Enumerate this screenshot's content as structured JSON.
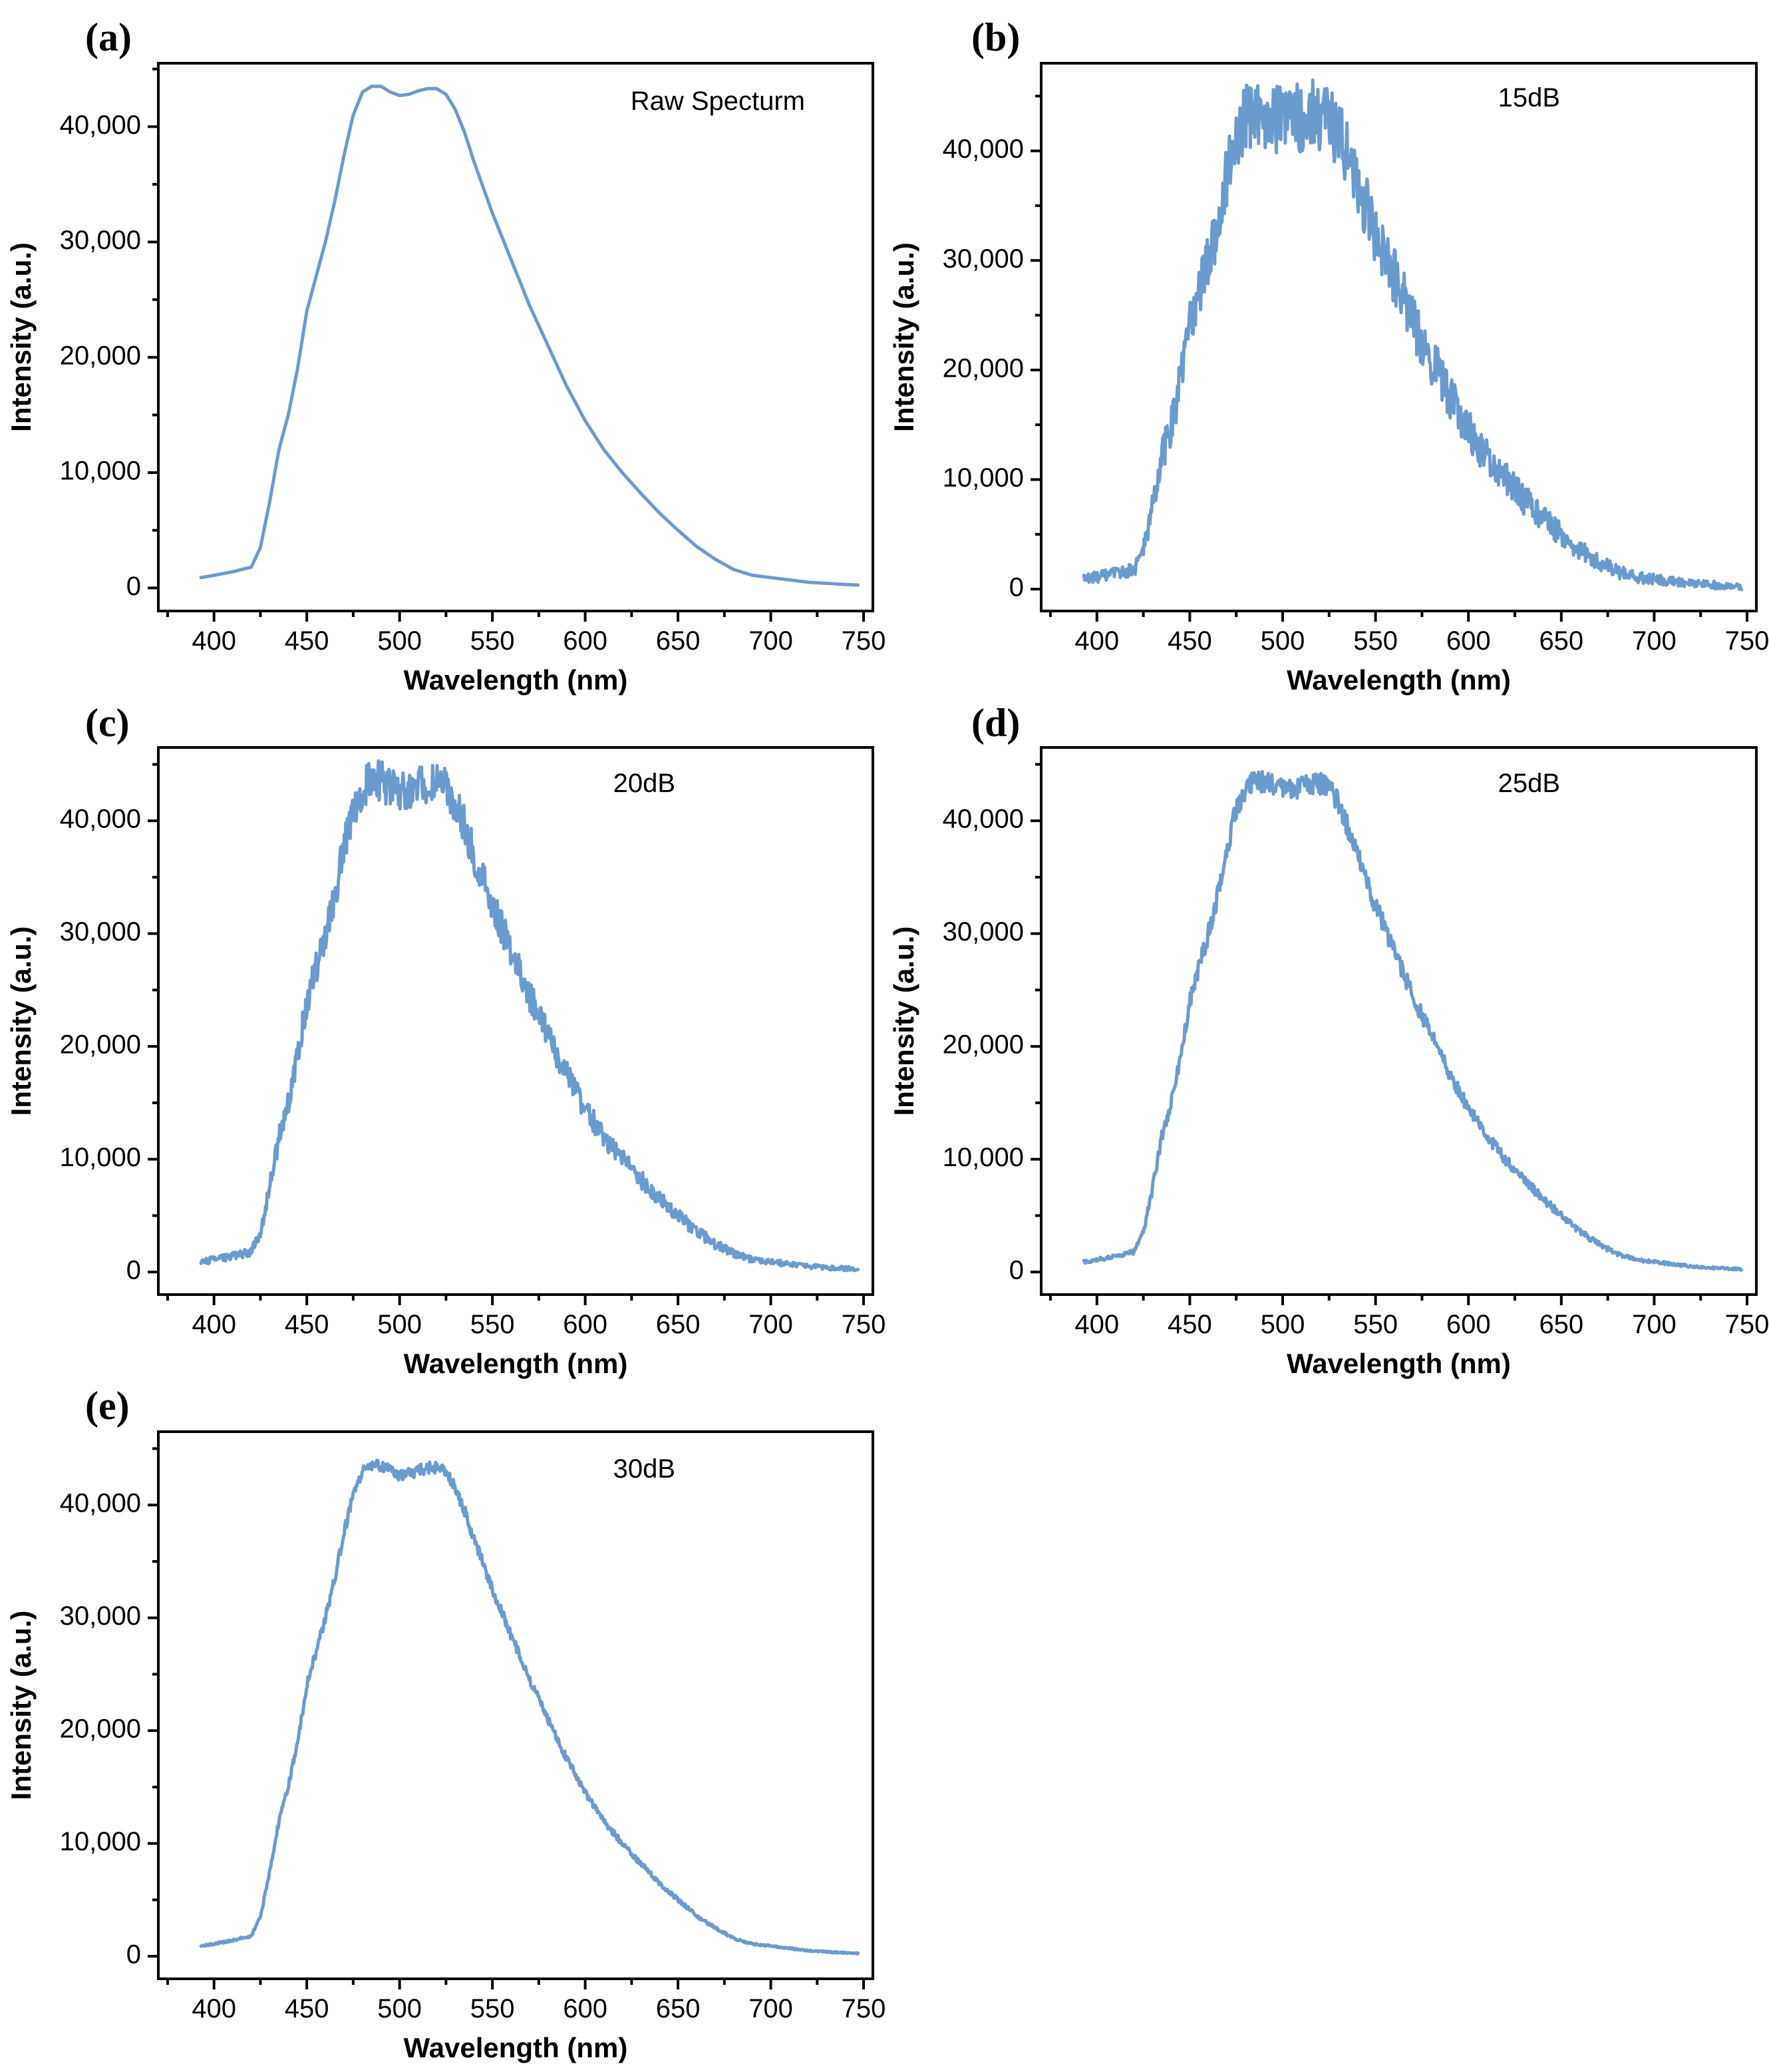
{
  "chart_data": [
    {
      "type": "line",
      "panel_label": "(a)",
      "annotation": "Raw Specturm",
      "xlabel": "Wavelength (nm)",
      "ylabel": "Intensity (a.u.)",
      "xlim": [
        370,
        755
      ],
      "ylim": [
        -2000,
        45500
      ],
      "xticks": [
        400,
        450,
        500,
        550,
        600,
        650,
        700,
        750
      ],
      "xtick_labels": [
        "400",
        "450",
        "500",
        "550",
        "600",
        "650",
        "700",
        "750"
      ],
      "yticks": [
        0,
        10000,
        20000,
        30000,
        40000
      ],
      "ytick_labels": [
        "0",
        "10,000",
        "20,000",
        "30,000",
        "40,000"
      ],
      "color": "#6a9bcf",
      "noise": 0,
      "series": [
        {
          "name": "Raw Specturm",
          "x": [
            393,
            400,
            410,
            420,
            425,
            430,
            435,
            440,
            445,
            450,
            455,
            460,
            465,
            470,
            475,
            480,
            485,
            490,
            495,
            500,
            505,
            510,
            515,
            520,
            525,
            530,
            535,
            540,
            550,
            560,
            570,
            580,
            590,
            600,
            610,
            620,
            630,
            640,
            650,
            660,
            670,
            680,
            690,
            700,
            710,
            720,
            730,
            740,
            747
          ],
          "y": [
            900,
            1100,
            1400,
            1800,
            3500,
            7500,
            12000,
            15000,
            19000,
            24000,
            27000,
            30000,
            33500,
            37500,
            41000,
            43000,
            43500,
            43500,
            43000,
            42700,
            42800,
            43100,
            43300,
            43300,
            42800,
            41500,
            39500,
            37000,
            32500,
            28500,
            24500,
            21000,
            17500,
            14500,
            12000,
            10000,
            8200,
            6500,
            5000,
            3600,
            2500,
            1600,
            1100,
            900,
            700,
            500,
            400,
            300,
            250
          ]
        }
      ]
    },
    {
      "type": "line",
      "panel_label": "(b)",
      "annotation": "15dB",
      "xlabel": "Wavelength (nm)",
      "ylabel": "Intensity (a.u.)",
      "xlim": [
        370,
        755
      ],
      "ylim": [
        -2000,
        48000
      ],
      "xticks": [
        400,
        450,
        500,
        550,
        600,
        650,
        700,
        750
      ],
      "xtick_labels": [
        "400",
        "450",
        "500",
        "550",
        "600",
        "650",
        "700",
        "750"
      ],
      "yticks": [
        0,
        10000,
        20000,
        30000,
        40000
      ],
      "ytick_labels": [
        "0",
        "10,000",
        "20,000",
        "30,000",
        "40,000"
      ],
      "color": "#6a9bcf",
      "noise": 3200,
      "series": [
        {
          "name": "15dB",
          "x": [
            393,
            400,
            410,
            420,
            425,
            430,
            435,
            440,
            445,
            450,
            455,
            460,
            465,
            470,
            475,
            480,
            485,
            490,
            495,
            500,
            505,
            510,
            515,
            520,
            525,
            530,
            535,
            540,
            550,
            560,
            570,
            580,
            590,
            600,
            610,
            620,
            630,
            640,
            650,
            660,
            670,
            680,
            690,
            700,
            710,
            720,
            730,
            740,
            747
          ],
          "y": [
            900,
            1100,
            1400,
            1800,
            3500,
            7500,
            12000,
            15000,
            19000,
            24000,
            27000,
            30000,
            33500,
            37500,
            41000,
            43000,
            43500,
            43500,
            43000,
            42700,
            42800,
            43100,
            43300,
            43300,
            42800,
            41500,
            39500,
            37000,
            32500,
            28500,
            24500,
            21000,
            17500,
            14500,
            12000,
            10000,
            8200,
            6500,
            5000,
            3600,
            2500,
            1600,
            1100,
            900,
            700,
            500,
            400,
            300,
            250
          ]
        }
      ]
    },
    {
      "type": "line",
      "panel_label": "(c)",
      "annotation": "20dB",
      "xlabel": "Wavelength (nm)",
      "ylabel": "Intensity (a.u.)",
      "xlim": [
        370,
        755
      ],
      "ylim": [
        -2000,
        46500
      ],
      "xticks": [
        400,
        450,
        500,
        550,
        600,
        650,
        700,
        750
      ],
      "xtick_labels": [
        "400",
        "450",
        "500",
        "550",
        "600",
        "650",
        "700",
        "750"
      ],
      "yticks": [
        0,
        10000,
        20000,
        30000,
        40000
      ],
      "ytick_labels": [
        "0",
        "10,000",
        "20,000",
        "30,000",
        "40,000"
      ],
      "color": "#6a9bcf",
      "noise": 1800,
      "series": [
        {
          "name": "20dB",
          "x": [
            393,
            400,
            410,
            420,
            425,
            430,
            435,
            440,
            445,
            450,
            455,
            460,
            465,
            470,
            475,
            480,
            485,
            490,
            495,
            500,
            505,
            510,
            515,
            520,
            525,
            530,
            535,
            540,
            550,
            560,
            570,
            580,
            590,
            600,
            610,
            620,
            630,
            640,
            650,
            660,
            670,
            680,
            690,
            700,
            710,
            720,
            730,
            740,
            747
          ],
          "y": [
            900,
            1100,
            1400,
            1800,
            3500,
            7500,
            12000,
            15000,
            19000,
            24000,
            27000,
            30000,
            33500,
            37500,
            41000,
            43000,
            43500,
            43500,
            43000,
            42700,
            42800,
            43100,
            43300,
            43300,
            42800,
            41500,
            39500,
            37000,
            32500,
            28500,
            24500,
            21000,
            17500,
            14500,
            12000,
            10000,
            8200,
            6500,
            5000,
            3600,
            2500,
            1600,
            1100,
            900,
            700,
            500,
            400,
            300,
            250
          ]
        }
      ]
    },
    {
      "type": "line",
      "panel_label": "(d)",
      "annotation": "25dB",
      "xlabel": "Wavelength (nm)",
      "ylabel": "Intensity (a.u.)",
      "xlim": [
        370,
        755
      ],
      "ylim": [
        -2000,
        46500
      ],
      "xticks": [
        400,
        450,
        500,
        550,
        600,
        650,
        700,
        750
      ],
      "xtick_labels": [
        "400",
        "450",
        "500",
        "550",
        "600",
        "650",
        "700",
        "750"
      ],
      "yticks": [
        0,
        10000,
        20000,
        30000,
        40000
      ],
      "ytick_labels": [
        "0",
        "10,000",
        "20,000",
        "30,000",
        "40,000"
      ],
      "color": "#6a9bcf",
      "noise": 1000,
      "series": [
        {
          "name": "25dB",
          "x": [
            393,
            400,
            410,
            420,
            425,
            430,
            435,
            440,
            445,
            450,
            455,
            460,
            465,
            470,
            475,
            480,
            485,
            490,
            495,
            500,
            505,
            510,
            515,
            520,
            525,
            530,
            535,
            540,
            550,
            560,
            570,
            580,
            590,
            600,
            610,
            620,
            630,
            640,
            650,
            660,
            670,
            680,
            690,
            700,
            710,
            720,
            730,
            740,
            747
          ],
          "y": [
            900,
            1100,
            1400,
            1800,
            3500,
            7500,
            12000,
            15000,
            19000,
            24000,
            27000,
            30000,
            33500,
            37500,
            41000,
            43000,
            43500,
            43500,
            43000,
            42700,
            42800,
            43100,
            43300,
            43300,
            42800,
            41500,
            39500,
            37000,
            32500,
            28500,
            24500,
            21000,
            17500,
            14500,
            12000,
            10000,
            8200,
            6500,
            5000,
            3600,
            2500,
            1600,
            1100,
            900,
            700,
            500,
            400,
            300,
            250
          ]
        }
      ]
    },
    {
      "type": "line",
      "panel_label": "(e)",
      "annotation": "30dB",
      "xlabel": "Wavelength (nm)",
      "ylabel": "Intensity (a.u.)",
      "xlim": [
        370,
        755
      ],
      "ylim": [
        -2000,
        46500
      ],
      "xticks": [
        400,
        450,
        500,
        550,
        600,
        650,
        700,
        750
      ],
      "xtick_labels": [
        "400",
        "450",
        "500",
        "550",
        "600",
        "650",
        "700",
        "750"
      ],
      "yticks": [
        0,
        10000,
        20000,
        30000,
        40000
      ],
      "ytick_labels": [
        "0",
        "10,000",
        "20,000",
        "30,000",
        "40,000"
      ],
      "color": "#6a9bcf",
      "noise": 550,
      "series": [
        {
          "name": "30dB",
          "x": [
            393,
            400,
            410,
            420,
            425,
            430,
            435,
            440,
            445,
            450,
            455,
            460,
            465,
            470,
            475,
            480,
            485,
            490,
            495,
            500,
            505,
            510,
            515,
            520,
            525,
            530,
            535,
            540,
            550,
            560,
            570,
            580,
            590,
            600,
            610,
            620,
            630,
            640,
            650,
            660,
            670,
            680,
            690,
            700,
            710,
            720,
            730,
            740,
            747
          ],
          "y": [
            900,
            1100,
            1400,
            1800,
            3500,
            7500,
            12000,
            15000,
            19000,
            24000,
            27000,
            30000,
            33500,
            37500,
            41000,
            43000,
            43500,
            43500,
            43000,
            42700,
            42800,
            43100,
            43300,
            43300,
            42800,
            41500,
            39500,
            37000,
            32500,
            28500,
            24500,
            21000,
            17500,
            14500,
            12000,
            10000,
            8200,
            6500,
            5000,
            3600,
            2500,
            1600,
            1100,
            900,
            700,
            500,
            400,
            300,
            250
          ]
        }
      ]
    }
  ]
}
